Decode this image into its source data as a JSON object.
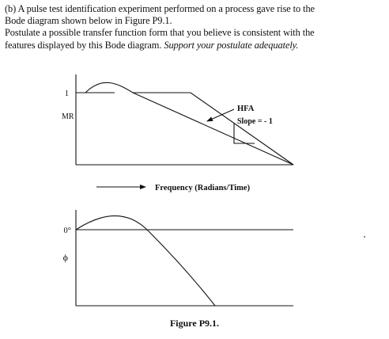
{
  "problem": {
    "line1": "(b) A pulse test identification experiment performed on a process gave rise to the",
    "line2": "Bode diagram shown below in Figure P9.1.",
    "line3": "Postulate a possible transfer function form that you believe is consistent with the",
    "line4_plain": "features displayed by this Bode diagram.",
    "line4_italic": "Support your postulate adequately."
  },
  "amplitude_plot": {
    "y_tick": "1",
    "y_label": "MR",
    "hfa_label": "HFA",
    "slope_label": "Slope = - 1"
  },
  "frequency_label": "Frequency (Radians/Time)",
  "phase_plot": {
    "y_tick": "0°",
    "y_label": "ϕ"
  },
  "figure_caption": "Figure P9.1."
}
